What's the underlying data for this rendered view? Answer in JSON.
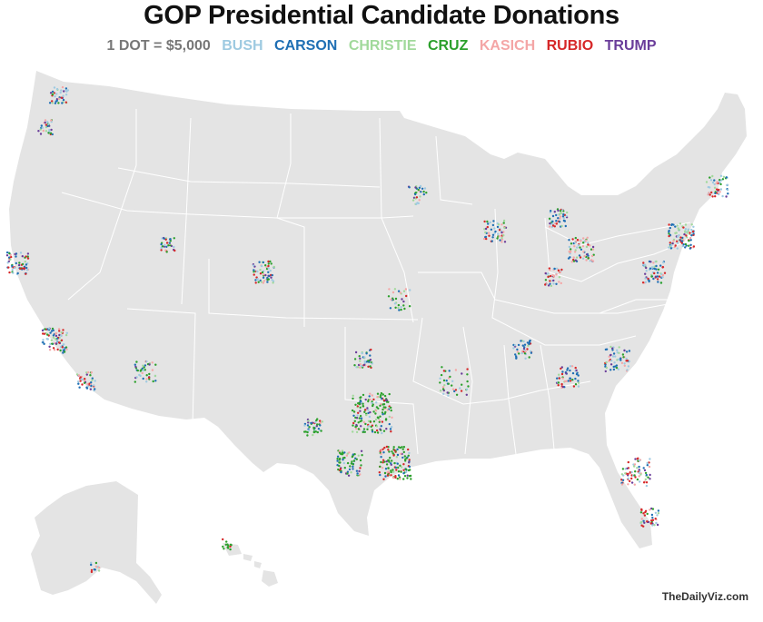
{
  "title": "GOP Presidential Candidate Donations",
  "legend": {
    "scale": "1 DOT = $5,000",
    "candidates": [
      {
        "name": "BUSH",
        "color": "#9ecae1"
      },
      {
        "name": "CARSON",
        "color": "#1f6fb4"
      },
      {
        "name": "CHRISTIE",
        "color": "#a1d99b"
      },
      {
        "name": "CRUZ",
        "color": "#2ca02c"
      },
      {
        "name": "KASICH",
        "color": "#f4a6a6"
      },
      {
        "name": "RUBIO",
        "color": "#d62728"
      },
      {
        "name": "TRUMP",
        "color": "#6a3d9a"
      }
    ]
  },
  "map": {
    "land_color": "#e4e4e4",
    "border_color": "#ffffff"
  },
  "credit": "TheDailyViz.com"
}
